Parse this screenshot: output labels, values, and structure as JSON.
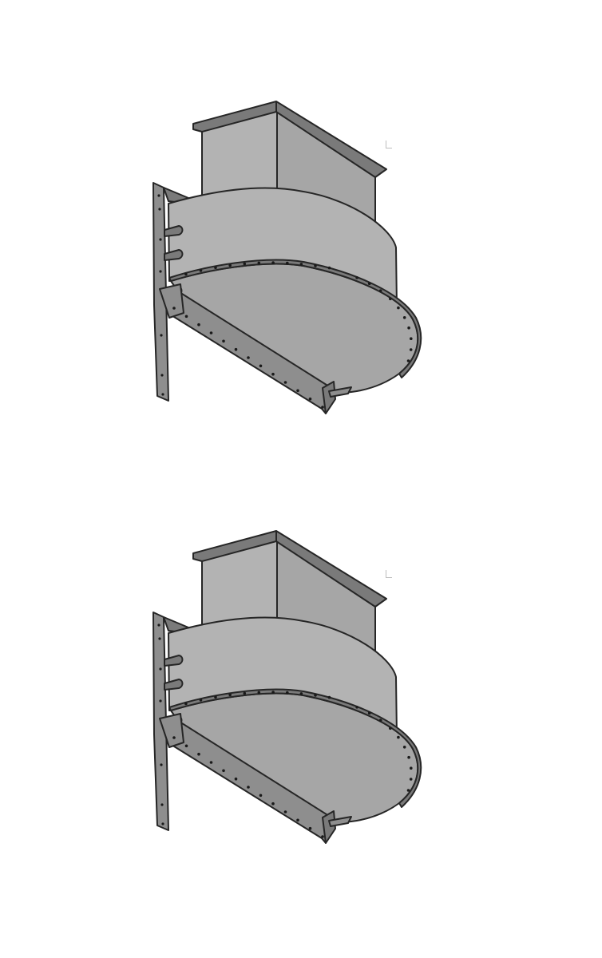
{
  "figure": {
    "subject": "spout-hood-illustration",
    "count": 2,
    "colors": {
      "background": "#ffffff",
      "panel_light": "#b3b3b3",
      "panel_mid": "#a6a6a6",
      "panel_dark": "#8e8e8e",
      "panel_darker": "#7a7a7a",
      "outline": "#262626",
      "rivet": "#1a1a1a"
    }
  }
}
